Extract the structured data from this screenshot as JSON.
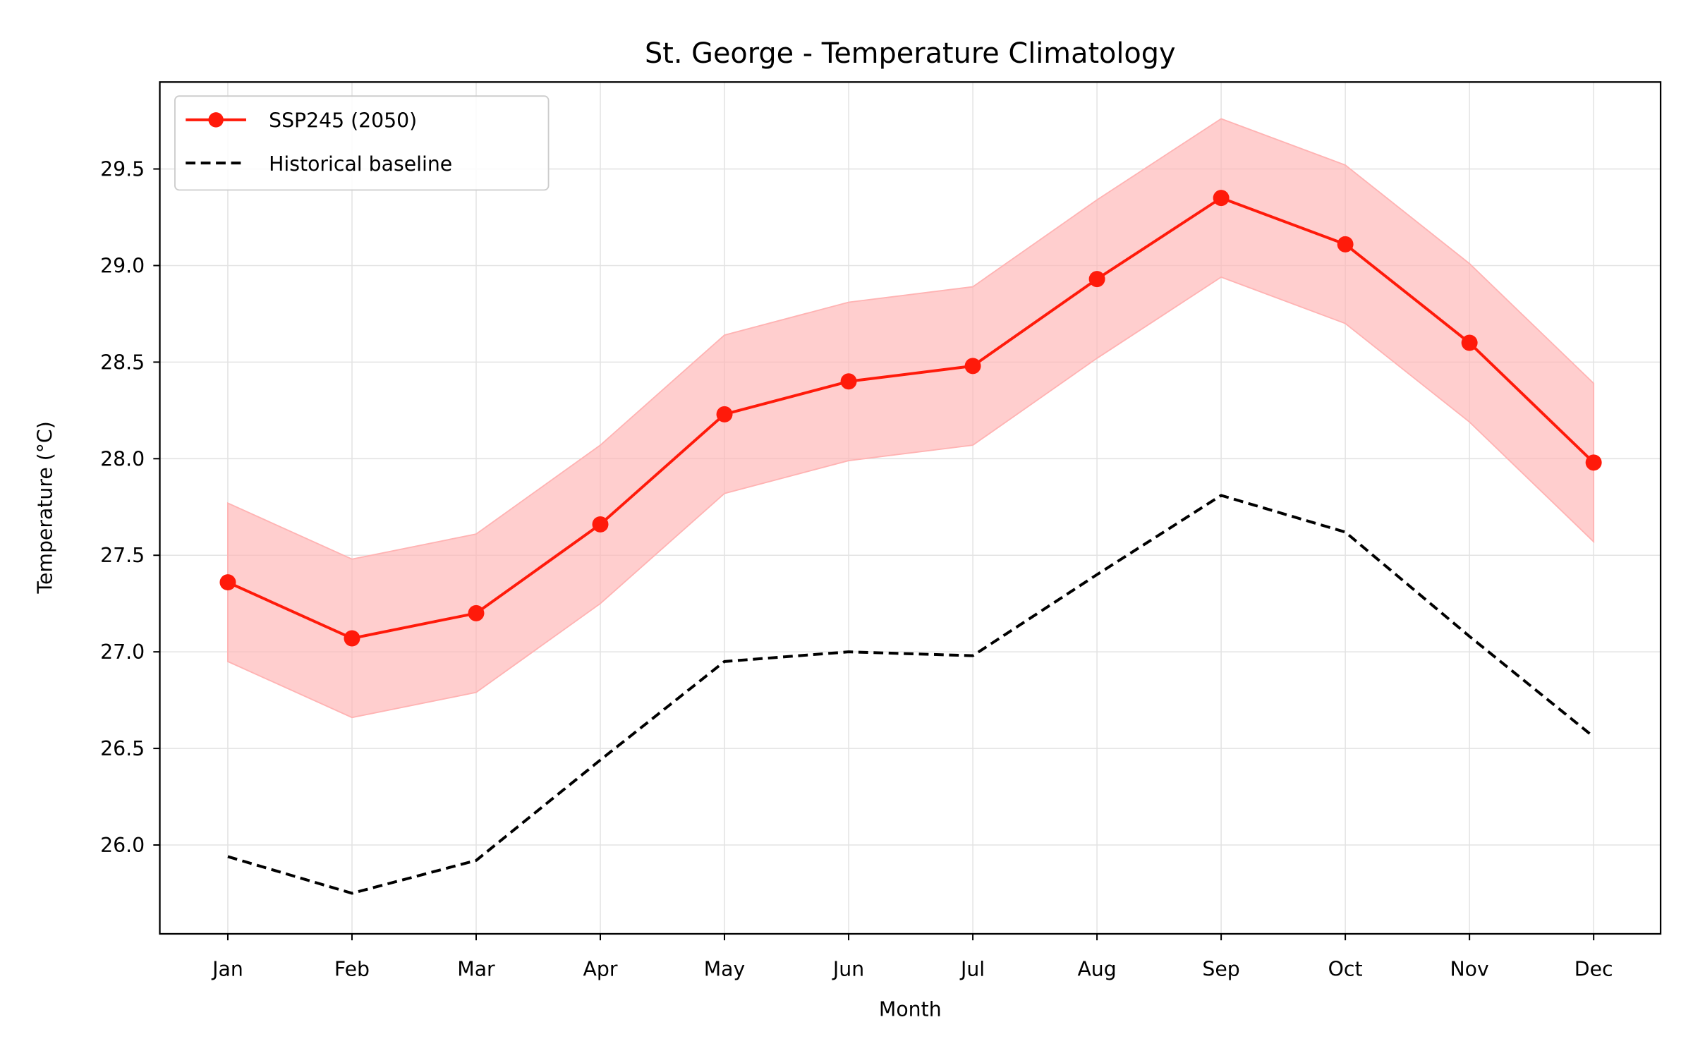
{
  "chart_data": {
    "type": "line",
    "title": "St. George - Temperature Climatology",
    "xlabel": "Month",
    "ylabel": "Temperature (°C)",
    "categories": [
      "Jan",
      "Feb",
      "Mar",
      "Apr",
      "May",
      "Jun",
      "Jul",
      "Aug",
      "Sep",
      "Oct",
      "Nov",
      "Dec"
    ],
    "ylim": [
      25.54,
      29.95
    ],
    "yticks": [
      "26.0",
      "26.5",
      "27.0",
      "27.5",
      "28.0",
      "28.5",
      "29.0",
      "29.5"
    ],
    "grid": true,
    "legend_position": "upper-left",
    "series": [
      {
        "name": "SSP245 (2050)",
        "color": "#ff1a0a",
        "style": "solid-with-markers",
        "values": [
          27.36,
          27.07,
          27.2,
          27.66,
          28.23,
          28.4,
          28.48,
          28.93,
          29.35,
          29.11,
          28.6,
          27.98
        ],
        "band_lower": [
          26.95,
          26.66,
          26.79,
          27.25,
          27.82,
          27.99,
          28.07,
          28.52,
          28.94,
          28.7,
          28.19,
          27.57
        ],
        "band_upper": [
          27.77,
          27.48,
          27.61,
          28.07,
          28.64,
          28.81,
          28.89,
          29.34,
          29.76,
          29.52,
          29.01,
          28.39
        ],
        "band_color": "#ffb3b3"
      },
      {
        "name": "Historical baseline",
        "color": "#000000",
        "style": "dashed",
        "values": [
          25.94,
          25.75,
          25.92,
          26.44,
          26.95,
          27.0,
          26.98,
          27.4,
          27.81,
          27.62,
          27.08,
          26.56
        ]
      }
    ]
  }
}
